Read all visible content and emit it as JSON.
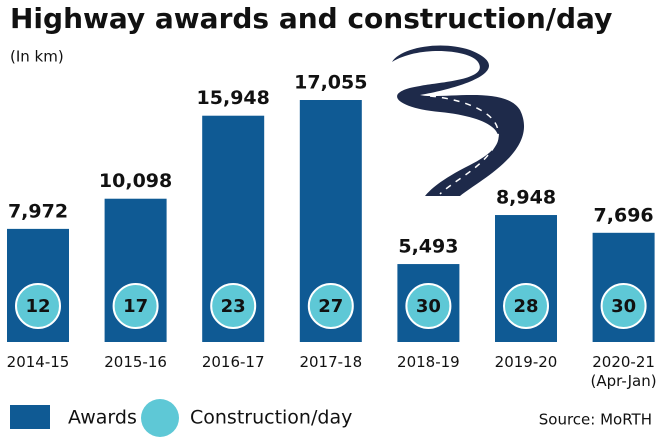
{
  "chart_data": {
    "type": "bar",
    "title": "Highway awards and construction/day",
    "subtitle": "(In km)",
    "categories": [
      "2014-15",
      "2015-16",
      "2016-17",
      "2017-18",
      "2018-19",
      "2019-20",
      "2020-21\n(Apr-Jan)"
    ],
    "series": [
      {
        "name": "Awards",
        "color": "#0f5a94",
        "values": [
          7972,
          10098,
          15948,
          17055,
          5493,
          8948,
          7696
        ],
        "value_labels": [
          "7,972",
          "10,098",
          "15,948",
          "17,055",
          "5,493",
          "8,948",
          "7,696"
        ]
      },
      {
        "name": "Construction/day",
        "color": "#5ec8d6",
        "values": [
          12,
          17,
          23,
          27,
          30,
          28,
          30
        ]
      }
    ],
    "source": "Source: MoRTH"
  }
}
